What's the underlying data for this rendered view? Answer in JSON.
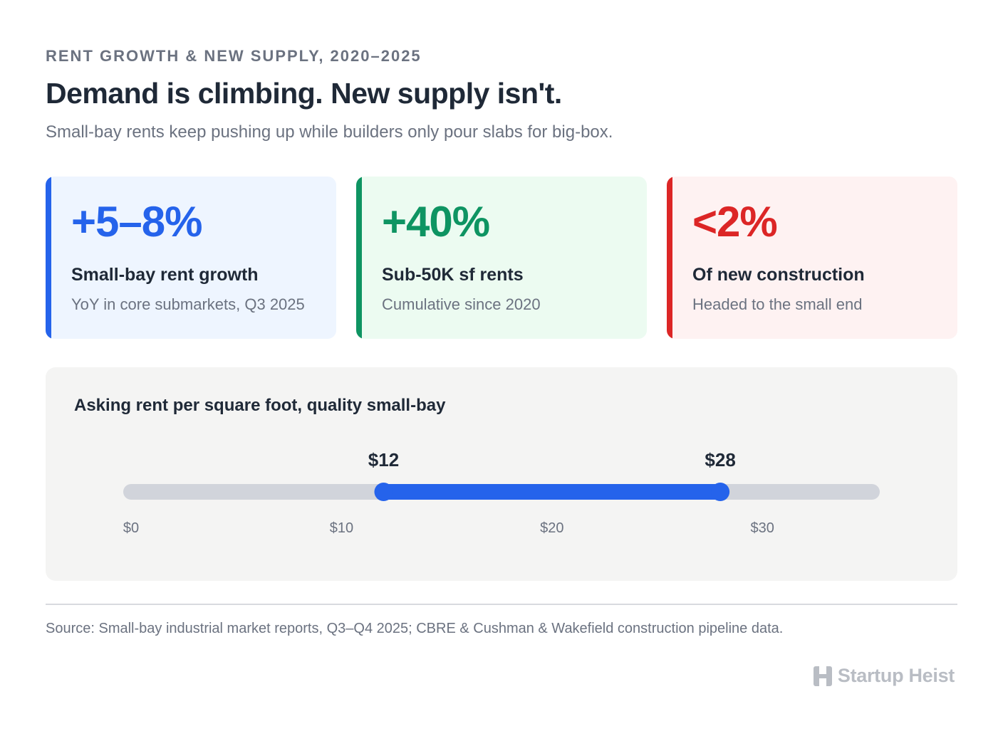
{
  "header": {
    "eyebrow": "RENT GROWTH & NEW SUPPLY, 2020–2025",
    "title": "Demand is climbing. New supply isn't.",
    "subtitle": "Small-bay rents keep pushing up while builders only pour slabs for big-box."
  },
  "cards": [
    {
      "stat": "+5–8%",
      "label": "Small-bay rent growth",
      "desc": "YoY in core submarkets, Q3 2025",
      "accent": "#2563eb",
      "bg": "#eef5ff"
    },
    {
      "stat": "+40%",
      "label": "Sub-50K sf rents",
      "desc": "Cumulative since 2020",
      "accent": "#0e9462",
      "bg": "#ecfbf1"
    },
    {
      "stat": "<2%",
      "label": "Of new construction",
      "desc": "Headed to the small end",
      "accent": "#dc2626",
      "bg": "#fef2f2"
    }
  ],
  "chart_data": {
    "type": "range",
    "title": "Asking rent per square foot, quality small-bay",
    "axis_min": 0,
    "axis_max": 35,
    "ticks": [
      0,
      10,
      20,
      30
    ],
    "tick_labels": [
      "$0",
      "$10",
      "$20",
      "$30"
    ],
    "range_low": 12,
    "range_high": 28,
    "low_label": "$12",
    "high_label": "$28",
    "track_color": "#d1d4db",
    "range_color": "#2563eb"
  },
  "footer": {
    "source": "Source: Small-bay industrial market reports, Q3–Q4 2025; CBRE & Cushman & Wakefield construction pipeline data.",
    "brand": "Startup Heist"
  }
}
